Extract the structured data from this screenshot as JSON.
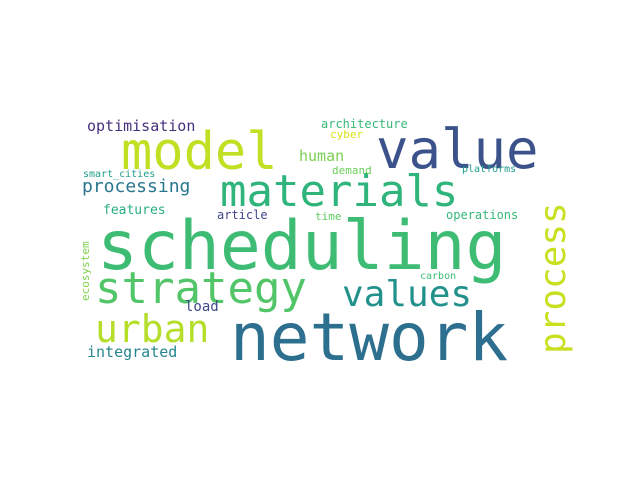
{
  "words": [
    {
      "text": "scheduling",
      "color": "#3ebc74"
    },
    {
      "text": "network",
      "color": "#2c6f8e"
    },
    {
      "text": "materials",
      "color": "#2fb47c"
    },
    {
      "text": "value",
      "color": "#3b528b"
    },
    {
      "text": "model",
      "color": "#c2df23"
    },
    {
      "text": "strategy",
      "color": "#52c569"
    },
    {
      "text": "values",
      "color": "#21918c"
    },
    {
      "text": "urban",
      "color": "#b5de2b"
    },
    {
      "text": "process",
      "color": "#c8e020"
    },
    {
      "text": "processing",
      "color": "#2a768e"
    },
    {
      "text": "optimisation",
      "color": "#46307e"
    },
    {
      "text": "human",
      "color": "#7ad151"
    },
    {
      "text": "features",
      "color": "#28ae80"
    },
    {
      "text": "integrated",
      "color": "#25848e"
    },
    {
      "text": "architecture",
      "color": "#37b878"
    },
    {
      "text": "article",
      "color": "#414487"
    },
    {
      "text": "load",
      "color": "#3e4a89"
    },
    {
      "text": "operations",
      "color": "#35b779"
    },
    {
      "text": "ecosystem",
      "color": "#7fd34e"
    },
    {
      "text": "cyber",
      "color": "#d8e219"
    },
    {
      "text": "demand",
      "color": "#6ccd5a"
    },
    {
      "text": "platforms",
      "color": "#1f9a8a"
    },
    {
      "text": "smart_cities",
      "color": "#1fa088"
    },
    {
      "text": "time",
      "color": "#5ec962"
    },
    {
      "text": "carbon",
      "color": "#3dbc74"
    }
  ]
}
